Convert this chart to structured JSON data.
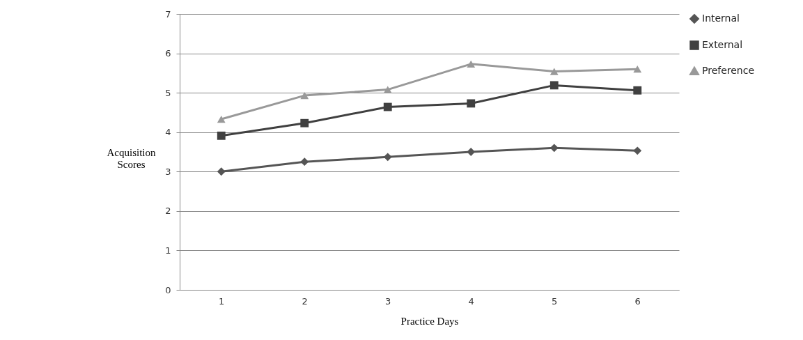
{
  "chart_data": {
    "type": "line",
    "xlabel": "Practice Days",
    "ylabel": "Acquisition Scores",
    "categories": [
      "1",
      "2",
      "3",
      "4",
      "5",
      "6"
    ],
    "series": [
      {
        "name": "Internal",
        "color": "#555555",
        "marker": "diamond",
        "values": [
          3.0,
          3.25,
          3.37,
          3.5,
          3.6,
          3.53
        ]
      },
      {
        "name": "External",
        "color": "#404040",
        "marker": "square",
        "values": [
          3.91,
          4.23,
          4.64,
          4.73,
          5.19,
          5.06
        ]
      },
      {
        "name": "Preference",
        "color": "#999999",
        "marker": "triangle",
        "values": [
          4.33,
          4.93,
          5.08,
          5.73,
          5.54,
          5.6
        ]
      }
    ],
    "ylim": [
      0,
      7
    ],
    "yticks": [
      0,
      1,
      2,
      3,
      4,
      5,
      6,
      7
    ],
    "grid": "y",
    "legend": "right",
    "line_style": "solid"
  }
}
